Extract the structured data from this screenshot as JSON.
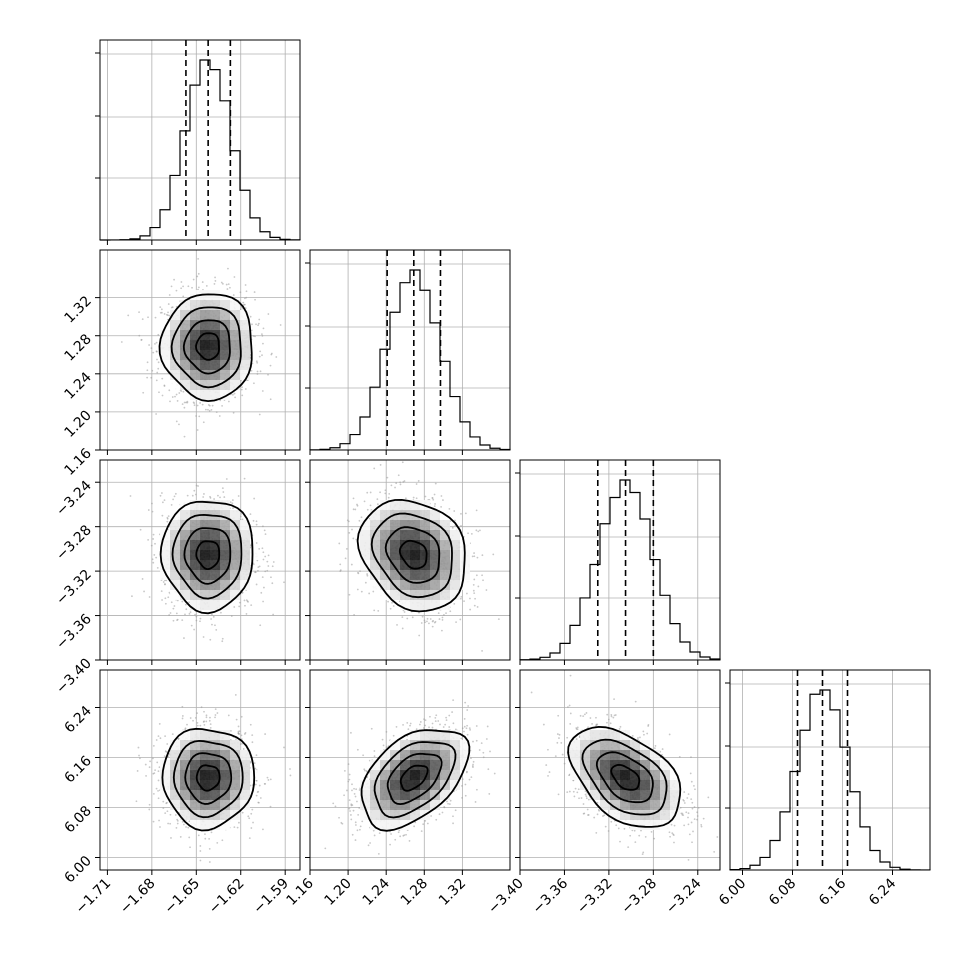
{
  "chart_data": {
    "type": "corner",
    "title": "",
    "parameters": [
      {
        "index": 0,
        "mean": -1.642,
        "sigma": 0.0155,
        "range": [
          -1.715,
          -1.58
        ],
        "ticks": [
          -1.71,
          -1.68,
          -1.65,
          -1.62,
          -1.59
        ],
        "tick_labels": [
          "−1.71",
          "−1.68",
          "−1.65",
          "−1.62",
          "−1.59"
        ],
        "quantiles": [
          -1.657,
          -1.642,
          -1.627
        ]
      },
      {
        "index": 1,
        "mean": 1.269,
        "sigma": 0.028,
        "range": [
          1.16,
          1.37
        ],
        "ticks": [
          1.16,
          1.2,
          1.24,
          1.28,
          1.32
        ],
        "tick_labels": [
          "1.16",
          "1.20",
          "1.24",
          "1.28",
          "1.32"
        ],
        "quantiles": [
          1.241,
          1.269,
          1.297
        ]
      },
      {
        "index": 2,
        "mean": -3.305,
        "sigma": 0.025,
        "range": [
          -3.4,
          -3.22
        ],
        "ticks": [
          -3.4,
          -3.36,
          -3.32,
          -3.28,
          -3.24
        ],
        "tick_labels": [
          "−3.40",
          "−3.36",
          "−3.32",
          "−3.28",
          "−3.24"
        ],
        "quantiles": [
          -3.33,
          -3.305,
          -3.28
        ]
      },
      {
        "index": 3,
        "mean": 6.128,
        "sigma": 0.04,
        "range": [
          5.98,
          6.3
        ],
        "ticks": [
          6.0,
          6.08,
          6.16,
          6.24
        ],
        "tick_labels": [
          "6.00",
          "6.08",
          "6.16",
          "6.24"
        ],
        "quantiles": [
          6.088,
          6.128,
          6.168
        ]
      }
    ],
    "correlations": [
      {
        "row": 1,
        "col": 0,
        "rho": 0.0
      },
      {
        "row": 2,
        "col": 0,
        "rho": 0.0
      },
      {
        "row": 2,
        "col": 1,
        "rho": -0.2
      },
      {
        "row": 3,
        "col": 0,
        "rho": 0.0
      },
      {
        "row": 3,
        "col": 1,
        "rho": 0.45
      },
      {
        "row": 3,
        "col": 2,
        "rho": -0.45
      }
    ],
    "contour_levels_sigma": [
      0.5,
      1.0,
      1.5,
      2.0
    ],
    "histogram_bins": 20,
    "grid": true,
    "colors": {
      "points": "#9a9a9a",
      "density": "#000000",
      "lines": "#000000"
    }
  }
}
